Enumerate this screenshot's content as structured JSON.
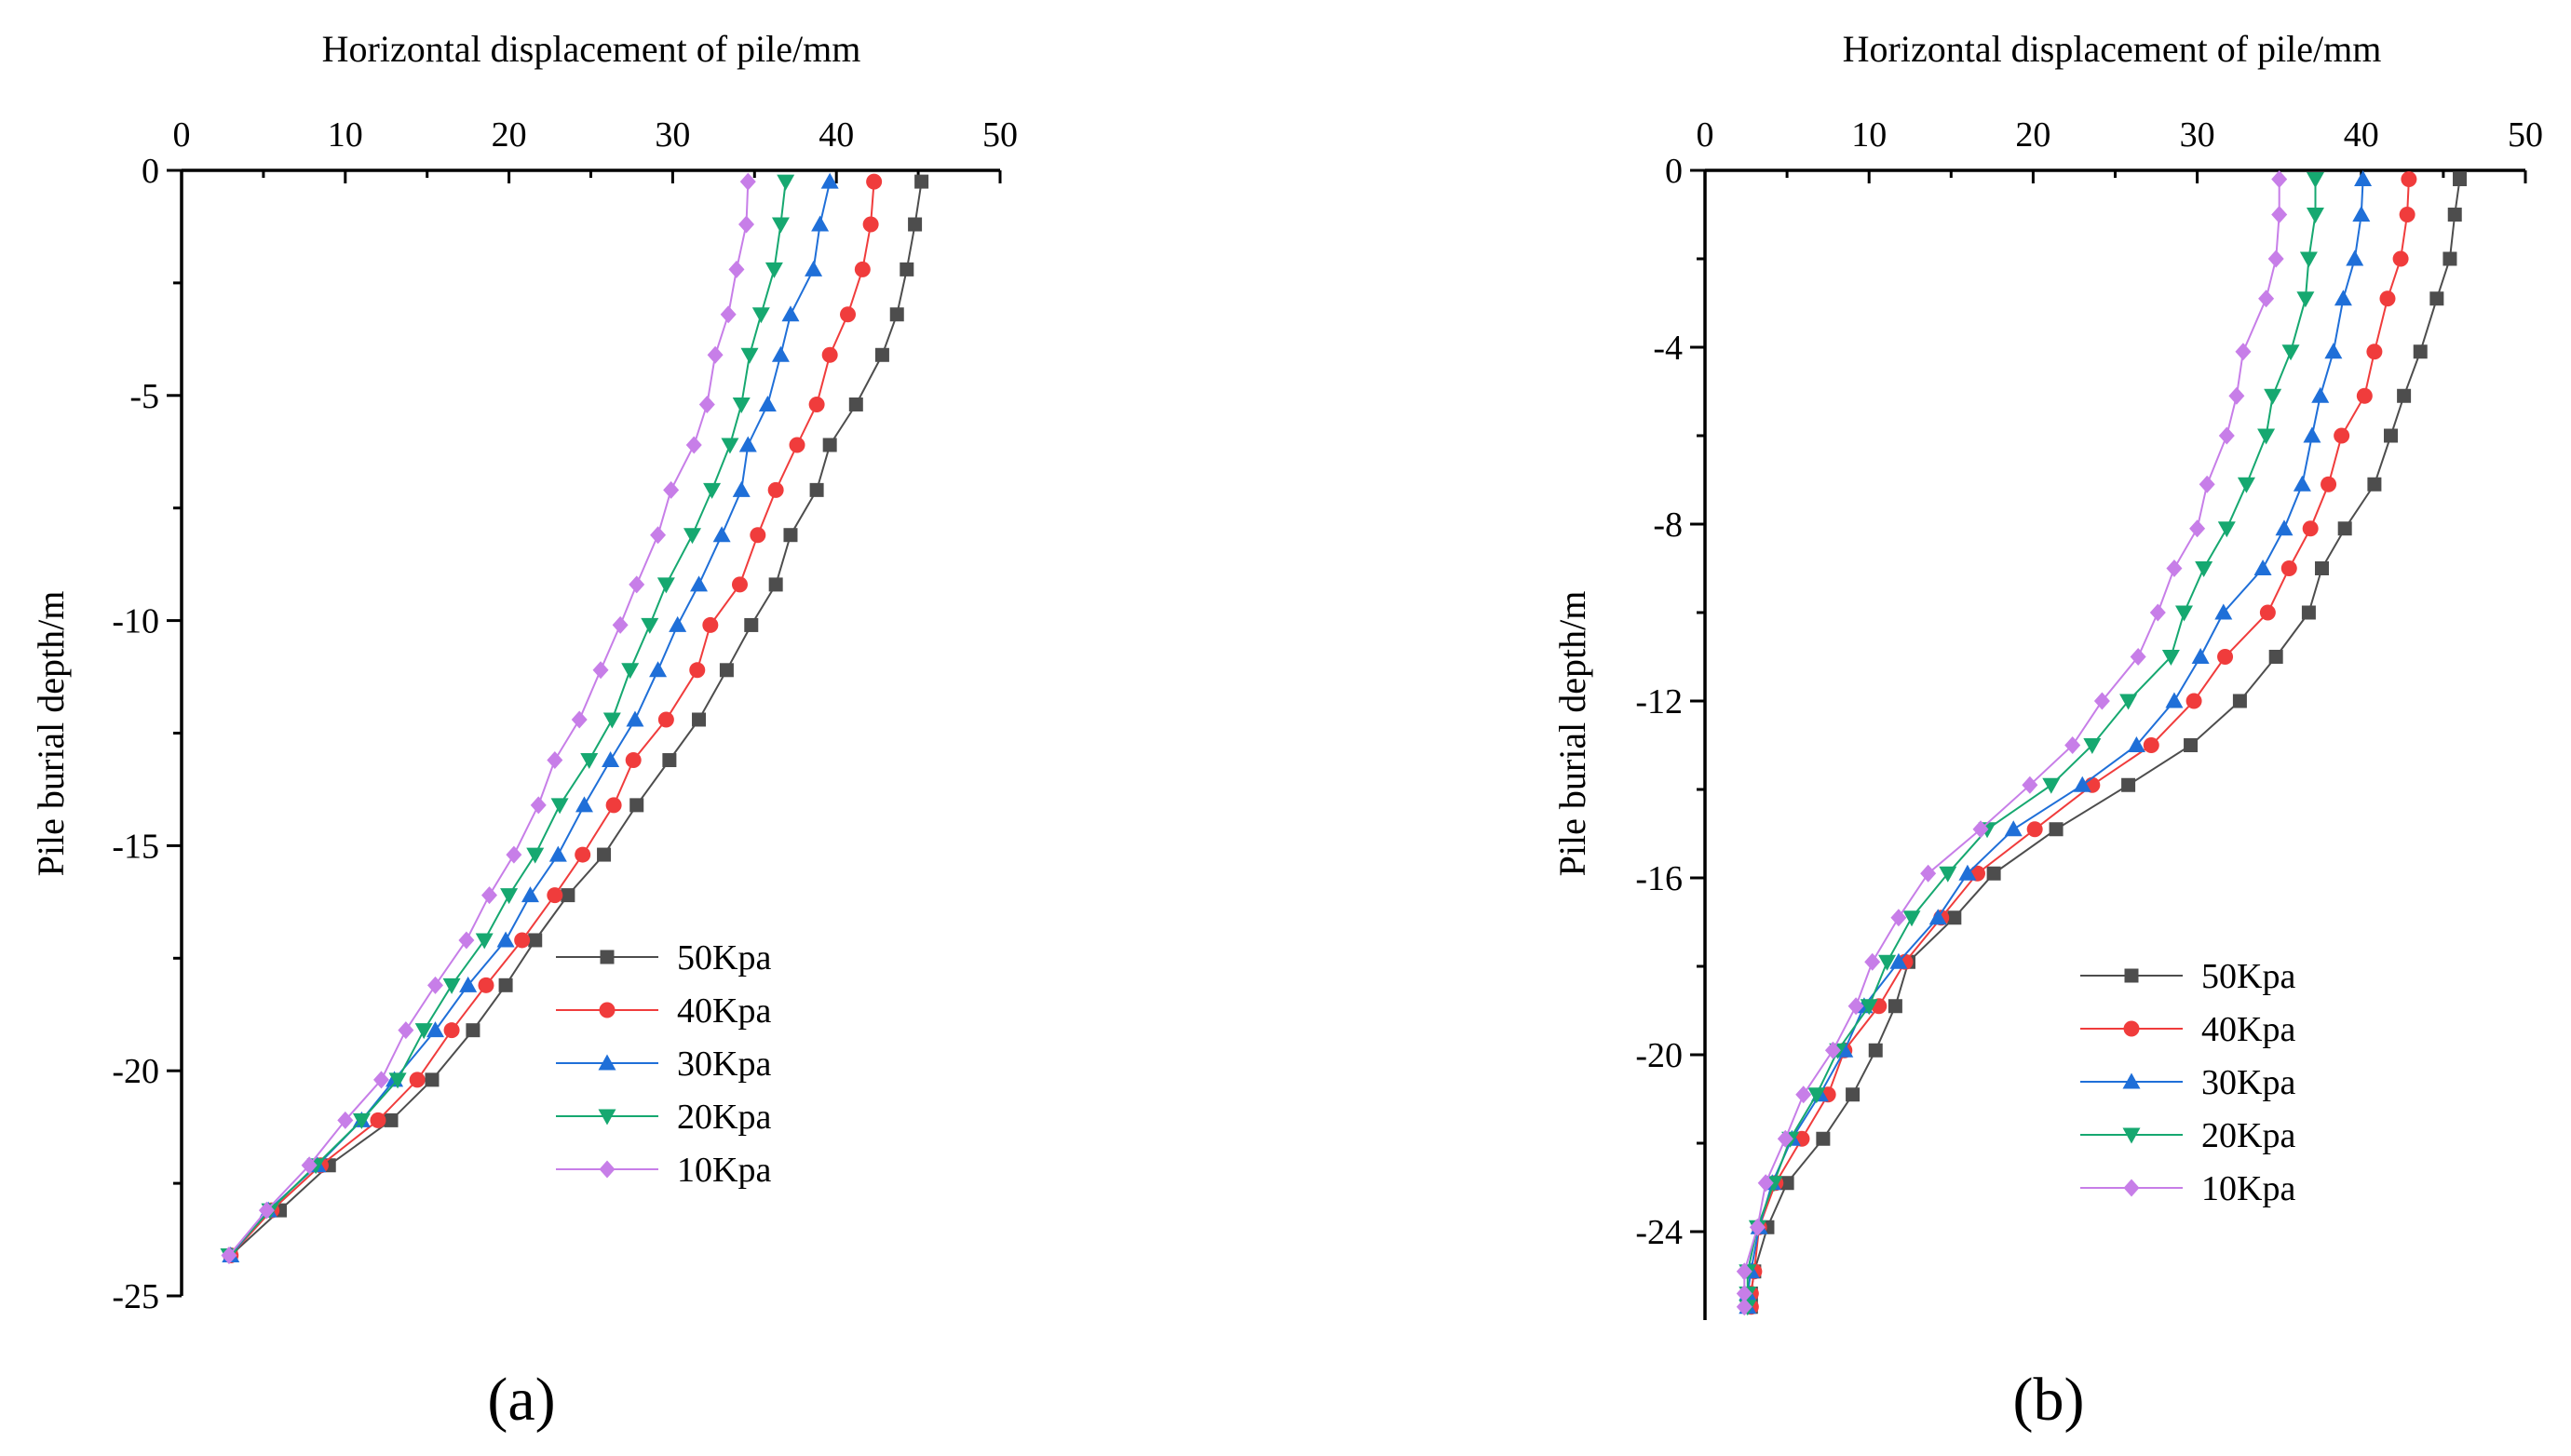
{
  "chart_data": [
    {
      "type": "line",
      "panel_label": "(a)",
      "xlabel": "Horizontal displacement of pile/mm",
      "ylabel": "Pile burial depth/m",
      "xlim": [
        0,
        50
      ],
      "ylim": [
        -25,
        0
      ],
      "xticks": [
        0,
        10,
        20,
        30,
        40,
        50
      ],
      "yticks": [
        0,
        -5,
        -10,
        -15,
        -20,
        -25
      ],
      "x_axis_position": "top",
      "grid": false,
      "legend_position": "lower-right",
      "y": [
        -0.25,
        -1.2,
        -2.2,
        -3.2,
        -4.1,
        -5.2,
        -6.1,
        -7.1,
        -8.1,
        -9.2,
        -10.1,
        -11.1,
        -12.2,
        -13.1,
        -14.1,
        -15.2,
        -16.1,
        -17.1,
        -18.1,
        -19.1,
        -20.2,
        -21.1,
        -22.1,
        -23.1,
        -24.1
      ],
      "series": [
        {
          "name": "50Kpa",
          "color": "#4d4d4d",
          "marker": "square",
          "values": [
            45.2,
            44.8,
            44.3,
            43.7,
            42.8,
            41.2,
            39.6,
            38.8,
            37.2,
            36.3,
            34.8,
            33.3,
            31.6,
            29.8,
            27.8,
            25.8,
            23.6,
            21.6,
            19.8,
            17.8,
            15.3,
            12.8,
            9.0,
            6.0,
            3.0
          ]
        },
        {
          "name": "40Kpa",
          "color": "#f03c3c",
          "marker": "circle",
          "values": [
            42.3,
            42.1,
            41.6,
            40.7,
            39.6,
            38.8,
            37.6,
            36.3,
            35.2,
            34.1,
            32.3,
            31.5,
            29.6,
            27.6,
            26.4,
            24.5,
            22.8,
            20.8,
            18.6,
            16.5,
            14.4,
            12.0,
            8.5,
            5.5,
            3.0
          ]
        },
        {
          "name": "30Kpa",
          "color": "#1f6fd8",
          "marker": "triangle-up",
          "values": [
            39.6,
            39.0,
            38.6,
            37.2,
            36.6,
            35.8,
            34.6,
            34.2,
            33.0,
            31.6,
            30.3,
            29.1,
            27.7,
            26.2,
            24.6,
            23.0,
            21.3,
            19.8,
            17.5,
            15.5,
            13.0,
            11.0,
            8.3,
            5.3,
            3.0
          ]
        },
        {
          "name": "20Kpa",
          "color": "#16a870",
          "marker": "triangle-down",
          "values": [
            36.9,
            36.6,
            36.2,
            35.4,
            34.7,
            34.2,
            33.5,
            32.4,
            31.2,
            29.6,
            28.6,
            27.4,
            26.3,
            24.9,
            23.1,
            21.6,
            20.0,
            18.5,
            16.5,
            14.8,
            13.2,
            11.0,
            8.2,
            5.4,
            2.9
          ]
        },
        {
          "name": "10Kpa",
          "color": "#c77ee8",
          "marker": "diamond",
          "values": [
            34.6,
            34.5,
            33.9,
            33.4,
            32.6,
            32.1,
            31.3,
            29.9,
            29.1,
            27.8,
            26.8,
            25.6,
            24.3,
            22.8,
            21.8,
            20.3,
            18.8,
            17.4,
            15.5,
            13.7,
            12.2,
            10.0,
            7.8,
            5.2,
            2.9
          ]
        }
      ]
    },
    {
      "type": "line",
      "panel_label": "(b)",
      "xlabel": "Horizontal displacement of pile/mm",
      "ylabel": "Pile burial depth/m",
      "xlim": [
        0,
        50
      ],
      "ylim": [
        -26,
        0
      ],
      "xticks": [
        0,
        10,
        20,
        30,
        40,
        50
      ],
      "yticks": [
        0,
        -4,
        -8,
        -12,
        -16,
        -20,
        -24
      ],
      "x_axis_position": "top",
      "grid": false,
      "legend_position": "lower-right",
      "y": [
        -0.2,
        -1.0,
        -2.0,
        -2.9,
        -4.1,
        -5.1,
        -6.0,
        -7.1,
        -8.1,
        -9.0,
        -10.0,
        -11.0,
        -12.0,
        -13.0,
        -13.9,
        -14.9,
        -15.9,
        -16.9,
        -17.9,
        -18.9,
        -19.9,
        -20.9,
        -21.9,
        -22.9,
        -23.9,
        -24.9,
        -25.4,
        -25.7
      ],
      "series": [
        {
          "name": "50Kpa",
          "color": "#4d4d4d",
          "marker": "square",
          "values": [
            46.0,
            45.7,
            45.4,
            44.6,
            43.6,
            42.6,
            41.8,
            40.8,
            39.0,
            37.6,
            36.8,
            34.8,
            32.6,
            29.6,
            25.8,
            21.4,
            17.6,
            15.2,
            12.4,
            11.6,
            10.4,
            9.0,
            7.2,
            5.0,
            3.8,
            3.0,
            2.8,
            2.8
          ]
        },
        {
          "name": "40Kpa",
          "color": "#f03c3c",
          "marker": "circle",
          "values": [
            42.9,
            42.8,
            42.4,
            41.6,
            40.8,
            40.2,
            38.8,
            38.0,
            36.9,
            35.6,
            34.3,
            31.7,
            29.8,
            27.2,
            23.6,
            20.1,
            16.6,
            14.4,
            12.2,
            10.6,
            8.5,
            7.5,
            5.9,
            4.3,
            3.3,
            3.0,
            2.8,
            2.8
          ]
        },
        {
          "name": "30Kpa",
          "color": "#1f6fd8",
          "marker": "triangle-up",
          "values": [
            40.1,
            40.0,
            39.6,
            38.9,
            38.3,
            37.5,
            37.0,
            36.4,
            35.3,
            34.0,
            31.6,
            30.2,
            28.6,
            26.3,
            23.0,
            18.8,
            16.0,
            14.2,
            11.8,
            9.7,
            8.5,
            7.0,
            5.3,
            4.1,
            3.3,
            2.8,
            2.6,
            2.6
          ]
        },
        {
          "name": "20Kpa",
          "color": "#16a870",
          "marker": "triangle-down",
          "values": [
            37.2,
            37.2,
            36.8,
            36.6,
            35.7,
            34.6,
            34.2,
            33.0,
            31.8,
            30.4,
            29.2,
            28.4,
            25.8,
            23.6,
            21.1,
            17.2,
            14.8,
            12.6,
            11.1,
            10.0,
            8.1,
            6.8,
            5.2,
            4.2,
            3.2,
            2.6,
            2.6,
            2.6
          ]
        },
        {
          "name": "10Kpa",
          "color": "#c77ee8",
          "marker": "diamond",
          "values": [
            35.0,
            35.0,
            34.8,
            34.2,
            32.8,
            32.4,
            31.8,
            30.6,
            30.0,
            28.6,
            27.6,
            26.4,
            24.2,
            22.4,
            19.8,
            16.8,
            13.6,
            11.8,
            10.2,
            9.2,
            7.8,
            6.0,
            4.9,
            3.7,
            3.2,
            2.4,
            2.4,
            2.4
          ]
        }
      ]
    }
  ]
}
